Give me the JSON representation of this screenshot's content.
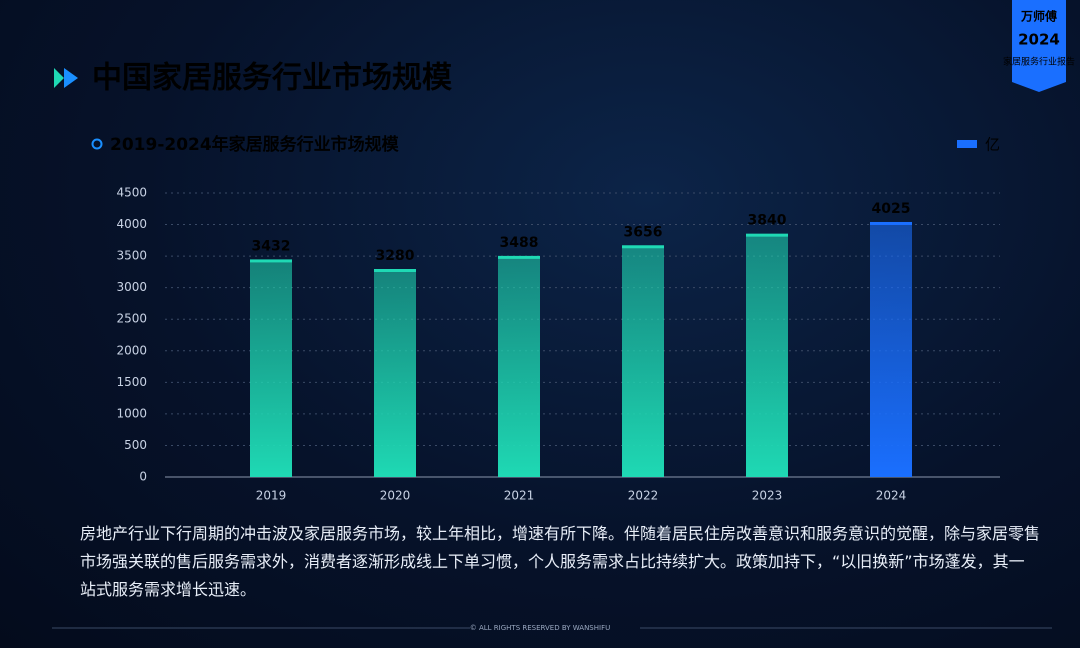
{
  "header": {
    "title": "中国家居服务行业市场规模"
  },
  "badge": {
    "brand": "万师傅",
    "year": "2024",
    "report": "家居服务行业报告"
  },
  "chart_data": {
    "type": "bar",
    "title": "2019-2024年家居服务行业市场规模",
    "legend": "亿",
    "legend_color": "#1a6fff",
    "categories": [
      "2019",
      "2020",
      "2021",
      "2022",
      "2023",
      "2024"
    ],
    "values": [
      3432,
      3280,
      3488,
      3656,
      3840,
      4025
    ],
    "colors": [
      "#1fd9b4",
      "#1fd9b4",
      "#1fd9b4",
      "#1fd9b4",
      "#1fd9b4",
      "#1a6fff"
    ],
    "ylim": [
      0,
      4500
    ],
    "yticks": [
      0,
      500,
      1000,
      1500,
      2000,
      2500,
      3000,
      3500,
      4000,
      4500
    ],
    "grid": true
  },
  "paragraph": "房地产行业下行周期的冲击波及家居服务市场，较上年相比，增速有所下降。伴随着居民住房改善意识和服务意识的觉醒，除与家居零售市场强关联的售后服务需求外，消费者逐渐形成线上下单习惯，个人服务需求占比持续扩大。政策加持下，“以旧换新”市场蓬发，其一站式服务需求增长迅速。",
  "footer": "© ALL RIGHTS RESERVED BY WANSHIFU"
}
